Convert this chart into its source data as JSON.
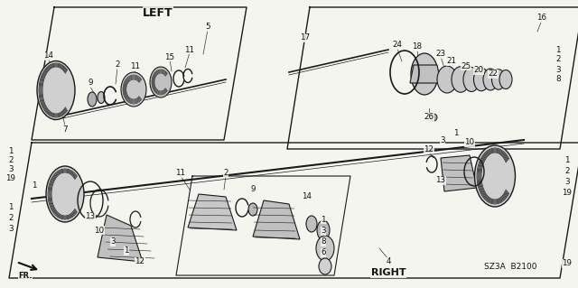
{
  "title": "LEFT",
  "subtitle_right": "RIGHT",
  "part_number": "SZ3A  B2100",
  "bg_color": "#f5f5f0",
  "line_color": "#1a1a1a",
  "text_color": "#111111",
  "fig_width": 6.4,
  "fig_height": 3.19,
  "dpi": 100
}
